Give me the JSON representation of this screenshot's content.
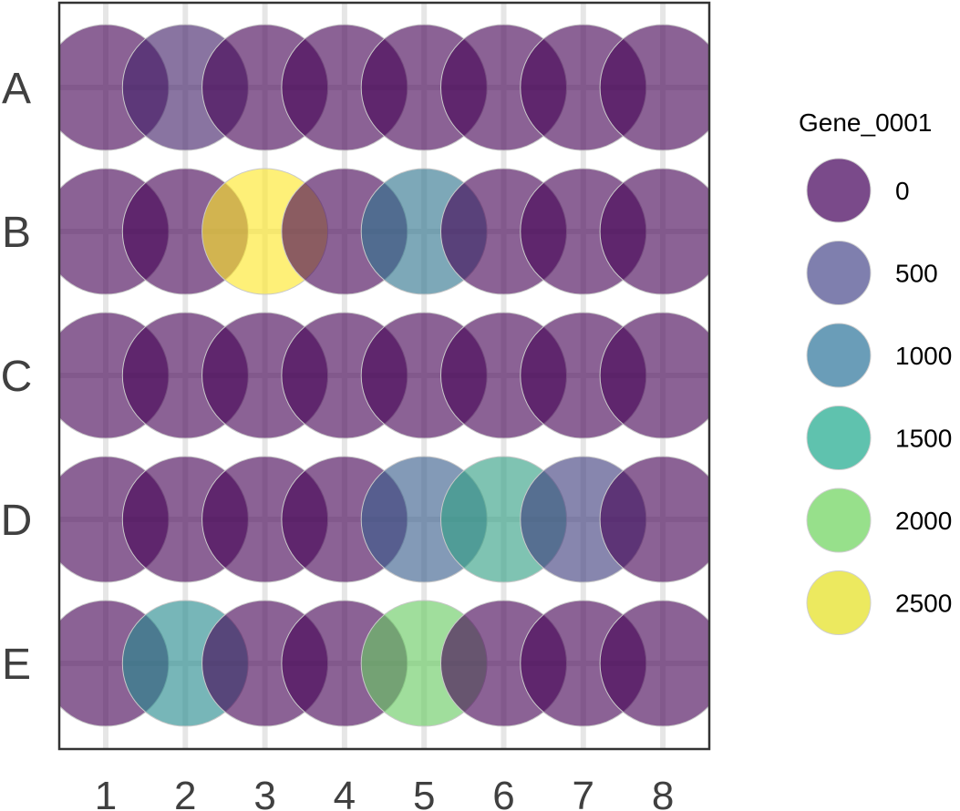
{
  "chart_data": {
    "type": "scatter",
    "title": "",
    "xlabel": "",
    "ylabel": "",
    "columns": [
      "1",
      "2",
      "3",
      "4",
      "5",
      "6",
      "7",
      "8"
    ],
    "rows": [
      "A",
      "B",
      "C",
      "D",
      "E"
    ],
    "values": {
      "A": [
        0,
        250,
        0,
        0,
        0,
        0,
        0,
        0
      ],
      "B": [
        0,
        0,
        2750,
        0,
        1050,
        0,
        0,
        0
      ],
      "C": [
        0,
        0,
        0,
        0,
        0,
        0,
        0,
        0
      ],
      "D": [
        0,
        0,
        0,
        0,
        800,
        1550,
        500,
        0
      ],
      "E": [
        0,
        1300,
        0,
        0,
        2100,
        0,
        0,
        0
      ]
    },
    "legend": {
      "title": "Gene_0001",
      "placement": "right",
      "entries": [
        {
          "label": "0",
          "value": 0,
          "color": "#7a4a8a"
        },
        {
          "label": "500",
          "value": 500,
          "color": "#7f7fae"
        },
        {
          "label": "1000",
          "value": 1000,
          "color": "#6a9db8"
        },
        {
          "label": "1500",
          "value": 1500,
          "color": "#5fc2ae"
        },
        {
          "label": "2000",
          "value": 2000,
          "color": "#97e08b"
        },
        {
          "label": "2500",
          "value": 2500,
          "color": "#ece95f"
        }
      ]
    },
    "color_scale": [
      "#440154",
      "#3b528b",
      "#21908d",
      "#5dc863",
      "#fde725"
    ],
    "value_range": [
      0,
      2750
    ],
    "grid": true
  }
}
